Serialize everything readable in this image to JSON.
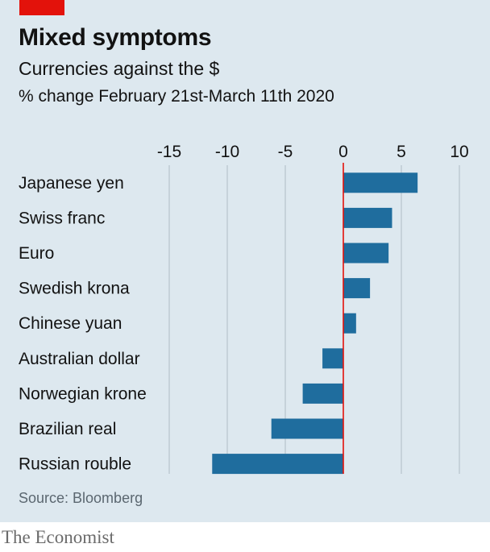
{
  "header": {
    "title": "Mixed symptoms",
    "subtitle": "Currencies against the $",
    "unit_note": "% change February 21st-March 11th 2020"
  },
  "footer": {
    "source": "Source: Bloomberg",
    "brand": "The Economist"
  },
  "colors": {
    "background": "#dde8ef",
    "bar": "#1f6d9e",
    "zero_line": "#e3120b",
    "grid": "#b9c6cf",
    "accent_tag": "#e3120b"
  },
  "chart_data": {
    "type": "bar",
    "orientation": "horizontal",
    "title": "Mixed symptoms",
    "subtitle": "Currencies against the $",
    "xlabel": "% change February 21st-March 11th 2020",
    "xlim": [
      -15,
      10
    ],
    "xticks": [
      -15,
      -10,
      -5,
      0,
      5,
      10
    ],
    "tick_labels": [
      "-15",
      "-10",
      "-5",
      "0",
      "5",
      "10"
    ],
    "grid": true,
    "categories": [
      "Japanese yen",
      "Swiss franc",
      "Euro",
      "Swedish krona",
      "Chinese yuan",
      "Australian dollar",
      "Norwegian krone",
      "Brazilian real",
      "Russian rouble"
    ],
    "values": [
      6.4,
      4.2,
      3.9,
      2.3,
      1.1,
      -1.8,
      -3.5,
      -6.2,
      -11.3
    ]
  }
}
